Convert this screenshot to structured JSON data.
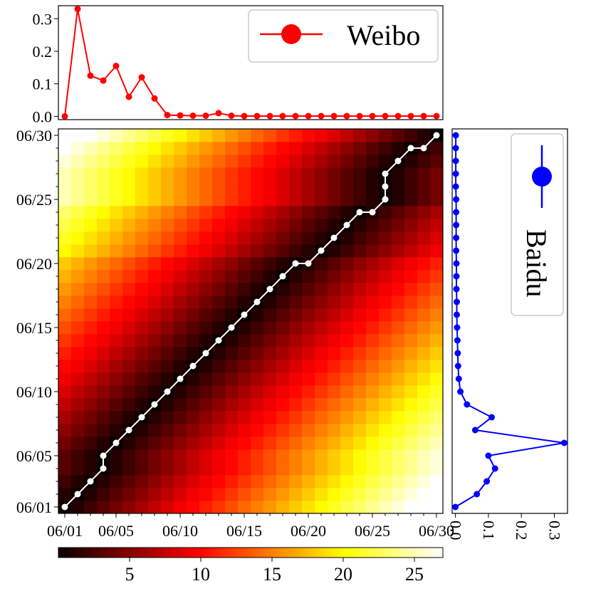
{
  "chart_data": [
    {
      "type": "line",
      "panel": "top",
      "legend": "Weibo",
      "legend_location": "upper-right",
      "color": "#ff0000",
      "ylim": [
        -0.01,
        0.34
      ],
      "yticks": [
        0.0,
        0.1,
        0.2,
        0.3
      ],
      "ytick_labels": [
        "0.0",
        "0.1",
        "0.2",
        "0.3"
      ],
      "x": [
        1,
        2,
        3,
        4,
        5,
        6,
        7,
        8,
        9,
        10,
        11,
        12,
        13,
        14,
        15,
        16,
        17,
        18,
        19,
        20,
        21,
        22,
        23,
        24,
        25,
        26,
        27,
        28,
        29,
        30
      ],
      "values": [
        0.0,
        0.33,
        0.125,
        0.11,
        0.155,
        0.06,
        0.12,
        0.055,
        0.004,
        0.003,
        0.002,
        0.002,
        0.01,
        0.002,
        0.001,
        0.001,
        0.001,
        0.001,
        0.001,
        0.001,
        0.001,
        0.001,
        0.001,
        0.001,
        0.001,
        0.001,
        0.001,
        0.001,
        0.001,
        0.001
      ]
    },
    {
      "type": "line",
      "panel": "right",
      "legend": "Baidu",
      "legend_location": "upper-right",
      "color": "#0000ff",
      "xlim": [
        -0.01,
        0.34
      ],
      "xticks": [
        0.0,
        0.1,
        0.2,
        0.3
      ],
      "xtick_labels": [
        "0.0",
        "0.1",
        "0.2",
        "0.3"
      ],
      "y": [
        1,
        2,
        3,
        4,
        5,
        6,
        7,
        8,
        9,
        10,
        11,
        12,
        13,
        14,
        15,
        16,
        17,
        18,
        19,
        20,
        21,
        22,
        23,
        24,
        25,
        26,
        27,
        28,
        29,
        30
      ],
      "values": [
        0.0,
        0.065,
        0.095,
        0.12,
        0.1,
        0.33,
        0.06,
        0.11,
        0.035,
        0.015,
        0.01,
        0.008,
        0.007,
        0.006,
        0.005,
        0.004,
        0.004,
        0.003,
        0.003,
        0.003,
        0.002,
        0.002,
        0.002,
        0.002,
        0.002,
        0.001,
        0.001,
        0.001,
        0.001,
        0.001
      ]
    },
    {
      "type": "heatmap",
      "panel": "main",
      "colormap": "hot",
      "xtick_labels": [
        "06/01",
        "06/05",
        "06/10",
        "06/15",
        "06/20",
        "06/25",
        "06/30"
      ],
      "ytick_labels": [
        "06/01",
        "06/05",
        "06/10",
        "06/15",
        "06/20",
        "06/25",
        "06/30"
      ],
      "ticks_day": [
        1,
        5,
        10,
        15,
        20,
        25,
        30
      ],
      "value_range": [
        0,
        27
      ],
      "description_values": "cell value grows with distance between the path day and the column day",
      "path_color": "#ffffff",
      "path": [
        [
          1,
          1
        ],
        [
          2,
          2
        ],
        [
          3,
          3
        ],
        [
          4,
          4
        ],
        [
          4,
          5
        ],
        [
          5,
          6
        ],
        [
          6,
          7
        ],
        [
          7,
          8
        ],
        [
          8,
          9
        ],
        [
          9,
          10
        ],
        [
          10,
          11
        ],
        [
          11,
          12
        ],
        [
          12,
          13
        ],
        [
          13,
          14
        ],
        [
          14,
          15
        ],
        [
          15,
          16
        ],
        [
          16,
          17
        ],
        [
          17,
          18
        ],
        [
          18,
          19
        ],
        [
          19,
          20
        ],
        [
          20,
          20
        ],
        [
          21,
          21
        ],
        [
          22,
          22
        ],
        [
          23,
          23
        ],
        [
          24,
          24
        ],
        [
          25,
          24
        ],
        [
          26,
          25
        ],
        [
          26,
          26
        ],
        [
          26,
          27
        ],
        [
          27,
          28
        ],
        [
          28,
          29
        ],
        [
          29,
          29
        ],
        [
          30,
          30
        ]
      ],
      "colorbar_ticks": [
        5,
        10,
        15,
        20,
        25
      ],
      "colorbar_tick_labels": [
        "5",
        "10",
        "15",
        "20",
        "25"
      ]
    }
  ]
}
